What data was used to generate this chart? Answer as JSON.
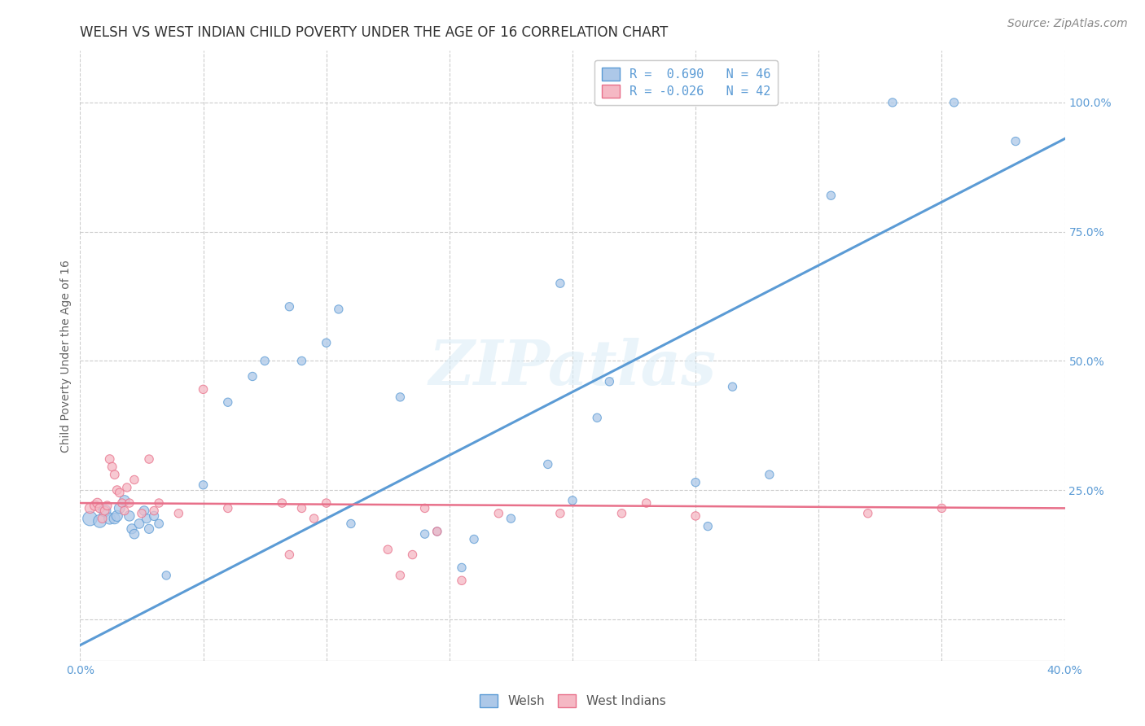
{
  "title": "WELSH VS WEST INDIAN CHILD POVERTY UNDER THE AGE OF 16 CORRELATION CHART",
  "source": "Source: ZipAtlas.com",
  "ylabel": "Child Poverty Under the Age of 16",
  "xlim": [
    0.0,
    0.4
  ],
  "ylim": [
    -0.08,
    1.1
  ],
  "xticks": [
    0.0,
    0.05,
    0.1,
    0.15,
    0.2,
    0.25,
    0.3,
    0.35,
    0.4
  ],
  "xticklabels": [
    "0.0%",
    "",
    "",
    "",
    "",
    "",
    "",
    "",
    "40.0%"
  ],
  "ytick_positions": [
    0.0,
    0.25,
    0.5,
    0.75,
    1.0
  ],
  "yticklabels": [
    "",
    "25.0%",
    "50.0%",
    "75.0%",
    "100.0%"
  ],
  "welsh_R": 0.69,
  "welsh_N": 46,
  "westindian_R": -0.026,
  "westindian_N": 42,
  "welsh_color": "#adc8e8",
  "westindian_color": "#f5b8c4",
  "welsh_line_color": "#5b9bd5",
  "westindian_line_color": "#e8708a",
  "legend_welsh_label": "Welsh",
  "legend_wi_label": "West Indians",
  "watermark": "ZIPatlas",
  "welsh_line_x0": 0.0,
  "welsh_line_y0": -0.05,
  "welsh_line_x1": 0.4,
  "welsh_line_y1": 0.93,
  "wi_line_x0": 0.0,
  "wi_line_y0": 0.225,
  "wi_line_x1": 0.4,
  "wi_line_y1": 0.215,
  "welsh_x": [
    0.004,
    0.008,
    0.01,
    0.012,
    0.014,
    0.015,
    0.016,
    0.018,
    0.02,
    0.021,
    0.022,
    0.024,
    0.026,
    0.027,
    0.028,
    0.03,
    0.032,
    0.035,
    0.05,
    0.06,
    0.07,
    0.075,
    0.085,
    0.09,
    0.1,
    0.105,
    0.11,
    0.13,
    0.14,
    0.145,
    0.155,
    0.16,
    0.175,
    0.19,
    0.195,
    0.2,
    0.21,
    0.215,
    0.25,
    0.255,
    0.265,
    0.28,
    0.305,
    0.33,
    0.355,
    0.38
  ],
  "welsh_y": [
    0.195,
    0.19,
    0.21,
    0.195,
    0.195,
    0.2,
    0.215,
    0.23,
    0.2,
    0.175,
    0.165,
    0.185,
    0.21,
    0.195,
    0.175,
    0.2,
    0.185,
    0.085,
    0.26,
    0.42,
    0.47,
    0.5,
    0.605,
    0.5,
    0.535,
    0.6,
    0.185,
    0.43,
    0.165,
    0.17,
    0.1,
    0.155,
    0.195,
    0.3,
    0.65,
    0.23,
    0.39,
    0.46,
    0.265,
    0.18,
    0.45,
    0.28,
    0.82,
    1.0,
    1.0,
    0.925
  ],
  "welsh_sizes": [
    160,
    130,
    110,
    100,
    90,
    90,
    85,
    80,
    80,
    75,
    70,
    70,
    70,
    65,
    65,
    65,
    60,
    55,
    55,
    55,
    55,
    55,
    55,
    55,
    55,
    55,
    55,
    55,
    55,
    55,
    55,
    55,
    55,
    55,
    55,
    55,
    55,
    55,
    55,
    55,
    55,
    55,
    55,
    55,
    55,
    55
  ],
  "wi_x": [
    0.004,
    0.006,
    0.007,
    0.008,
    0.009,
    0.01,
    0.011,
    0.012,
    0.013,
    0.014,
    0.015,
    0.016,
    0.017,
    0.018,
    0.019,
    0.02,
    0.022,
    0.025,
    0.028,
    0.03,
    0.032,
    0.04,
    0.05,
    0.06,
    0.082,
    0.085,
    0.09,
    0.095,
    0.1,
    0.125,
    0.13,
    0.135,
    0.14,
    0.145,
    0.155,
    0.17,
    0.195,
    0.22,
    0.23,
    0.25,
    0.32,
    0.35
  ],
  "wi_y": [
    0.215,
    0.22,
    0.225,
    0.215,
    0.195,
    0.21,
    0.22,
    0.31,
    0.295,
    0.28,
    0.25,
    0.245,
    0.225,
    0.21,
    0.255,
    0.225,
    0.27,
    0.205,
    0.31,
    0.21,
    0.225,
    0.205,
    0.445,
    0.215,
    0.225,
    0.125,
    0.215,
    0.195,
    0.225,
    0.135,
    0.085,
    0.125,
    0.215,
    0.17,
    0.075,
    0.205,
    0.205,
    0.205,
    0.225,
    0.2,
    0.205,
    0.215
  ],
  "wi_sizes": [
    80,
    75,
    70,
    65,
    60,
    60,
    60,
    60,
    60,
    60,
    60,
    58,
    56,
    56,
    56,
    56,
    56,
    56,
    56,
    56,
    56,
    56,
    56,
    56,
    56,
    56,
    56,
    56,
    56,
    56,
    56,
    56,
    56,
    56,
    56,
    56,
    56,
    56,
    56,
    56,
    56,
    56
  ],
  "dot_alpha": 0.75,
  "grid_color": "#cccccc",
  "grid_style": "--",
  "bg_color": "#ffffff",
  "title_fontsize": 12,
  "axis_label_fontsize": 10,
  "tick_fontsize": 10,
  "source_fontsize": 10,
  "legend_fontsize": 11
}
